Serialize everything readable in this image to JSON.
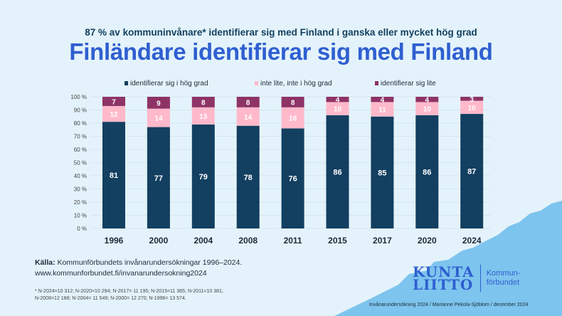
{
  "subtitle": "87 % av kommuninvånare* identifierar sig med Finland i ganska eller mycket hög grad",
  "title": "Finländare identifierar sig med Finland",
  "chart_data": {
    "type": "bar",
    "stacked": true,
    "categories": [
      "1996",
      "2000",
      "2004",
      "2008",
      "2011",
      "2015",
      "2017",
      "2020",
      "2024"
    ],
    "series": [
      {
        "name": "identifierar sig i hög grad",
        "color": "#133f60",
        "values": [
          81,
          77,
          79,
          78,
          76,
          86,
          85,
          86,
          87
        ]
      },
      {
        "name": "inte lite, inte i hög grad",
        "color": "#ffb9cb",
        "values": [
          12,
          14,
          13,
          14,
          16,
          10,
          11,
          10,
          10
        ]
      },
      {
        "name": "identifierar sig lite",
        "color": "#8e3366",
        "values": [
          7,
          9,
          8,
          8,
          8,
          4,
          4,
          4,
          3
        ]
      }
    ],
    "yticks": [
      "0 %",
      "10 %",
      "20 %",
      "30 %",
      "40 %",
      "50 %",
      "60 %",
      "70 %",
      "80 %",
      "90 %",
      "100 %"
    ],
    "ylim": [
      0,
      100
    ],
    "legend": "top"
  },
  "source": {
    "label": "Källa:",
    "text": " Kommunförbundets invånarundersökningar 1996–2024.",
    "url": "www.kommunforbundet.fi/invanarundersokning2024"
  },
  "note": [
    "* N-2024=10 312; N-2020=10 294; N-2017= 11 195; N-2015=11 365; N-2011=10 381;",
    "N-2008=12 188; N-2004= 11 549; N-2000= 12 270; N-1996= 13 574."
  ],
  "logo": {
    "line1": "KUNTA",
    "line2": "LIITTO",
    "sub1": "Kommun-",
    "sub2": "förbundet"
  },
  "footer": "Invånarundersökning 2024 / Marianne Pekola-Sjöblom / december 2024"
}
